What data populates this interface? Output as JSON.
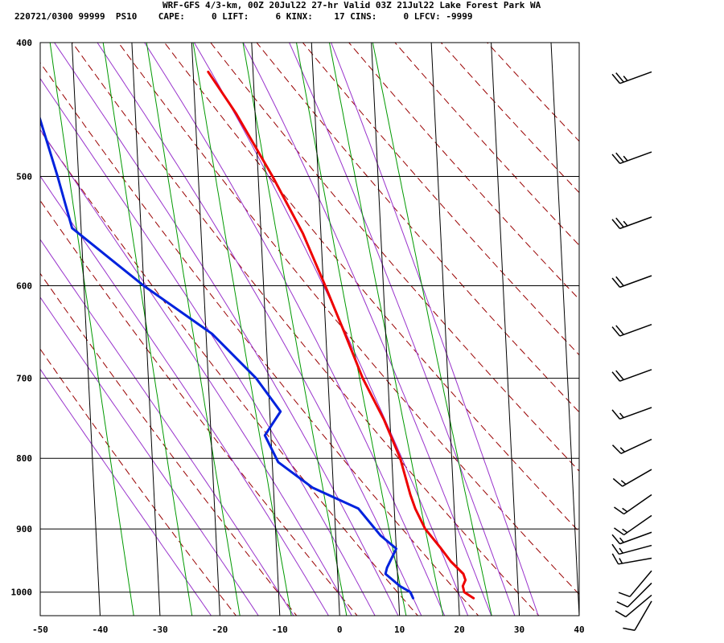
{
  "header": {
    "title": "WRF-GFS 4/3-km, 00Z 20Jul22 27-hr Valid 03Z 21Jul22 Lake Forest Park WA",
    "subtitle": "220721/0300 99999  PS10    CAPE:     0 LIFT:     6 KINX:    17 CINS:     0 LFCV: -9999"
  },
  "chart_data": {
    "type": "line",
    "chart_kind": "skew-T log-p sounding",
    "title": "WRF-GFS 4/3-km, 00Z 20Jul22 27-hr Valid 03Z 21Jul22 Lake Forest Park WA",
    "xlabel": "",
    "ylabel": "",
    "x_unit": "temperature (°C, skewed)",
    "y_unit": "pressure (hPa, log scale)",
    "xlim": [
      -50,
      40
    ],
    "ylim": [
      1040,
      400
    ],
    "y_scale": "log",
    "grid": true,
    "x_ticks": [
      -50,
      -40,
      -30,
      -20,
      -10,
      0,
      10,
      20,
      30,
      40
    ],
    "y_ticks": [
      400,
      500,
      600,
      700,
      800,
      900,
      1000
    ],
    "colors": {
      "temperature": "#ee0000",
      "dewpoint": "#0022dd",
      "dry_adiabats": "#990000",
      "moist_adiabats": "#9933cc",
      "mixing_ratio": "#009900",
      "grid": "#000000"
    },
    "series": [
      {
        "key": "temperature",
        "color": "#ee0000",
        "points": [
          {
            "p": 1010,
            "t": 22.5
          },
          {
            "p": 1000,
            "t": 21.0
          },
          {
            "p": 990,
            "t": 20.8
          },
          {
            "p": 980,
            "t": 21.3
          },
          {
            "p": 970,
            "t": 21.0
          },
          {
            "p": 950,
            "t": 19.0
          },
          {
            "p": 930,
            "t": 17.5
          },
          {
            "p": 900,
            "t": 15.0
          },
          {
            "p": 870,
            "t": 13.5
          },
          {
            "p": 850,
            "t": 12.8
          },
          {
            "p": 800,
            "t": 11.4
          },
          {
            "p": 750,
            "t": 9.0
          },
          {
            "p": 700,
            "t": 5.8
          },
          {
            "p": 650,
            "t": 3.2
          },
          {
            "p": 600,
            "t": 0.3
          },
          {
            "p": 550,
            "t": -3.0
          },
          {
            "p": 500,
            "t": -7.6
          },
          {
            "p": 450,
            "t": -13.2
          },
          {
            "p": 420,
            "t": -17.5
          }
        ]
      },
      {
        "key": "dewpoint",
        "color": "#0022dd",
        "points": [
          {
            "p": 1010,
            "t": 12.4
          },
          {
            "p": 1000,
            "t": 12.0
          },
          {
            "p": 990,
            "t": 10.3
          },
          {
            "p": 970,
            "t": 8.0
          },
          {
            "p": 960,
            "t": 8.3
          },
          {
            "p": 930,
            "t": 10.0
          },
          {
            "p": 910,
            "t": 7.5
          },
          {
            "p": 870,
            "t": 4.0
          },
          {
            "p": 840,
            "t": -3.5
          },
          {
            "p": 805,
            "t": -9.0
          },
          {
            "p": 770,
            "t": -11.0
          },
          {
            "p": 740,
            "t": -8.2
          },
          {
            "p": 700,
            "t": -12.0
          },
          {
            "p": 650,
            "t": -19.0
          },
          {
            "p": 600,
            "t": -30.0
          },
          {
            "p": 545,
            "t": -41.5
          },
          {
            "p": 500,
            "t": -43.5
          },
          {
            "p": 420,
            "t": -48.0
          }
        ]
      }
    ],
    "wind_barbs": [
      {
        "p": 420,
        "dir": 250,
        "speed": 25
      },
      {
        "p": 480,
        "dir": 250,
        "speed": 25
      },
      {
        "p": 535,
        "dir": 250,
        "speed": 25
      },
      {
        "p": 590,
        "dir": 250,
        "speed": 20
      },
      {
        "p": 640,
        "dir": 250,
        "speed": 20
      },
      {
        "p": 690,
        "dir": 250,
        "speed": 20
      },
      {
        "p": 735,
        "dir": 250,
        "speed": 15
      },
      {
        "p": 775,
        "dir": 245,
        "speed": 15
      },
      {
        "p": 815,
        "dir": 240,
        "speed": 15
      },
      {
        "p": 850,
        "dir": 235,
        "speed": 15
      },
      {
        "p": 880,
        "dir": 235,
        "speed": 15
      },
      {
        "p": 905,
        "dir": 250,
        "speed": 15
      },
      {
        "p": 925,
        "dir": 255,
        "speed": 15
      },
      {
        "p": 945,
        "dir": 260,
        "speed": 15
      },
      {
        "p": 965,
        "dir": 220,
        "speed": 10
      },
      {
        "p": 985,
        "dir": 225,
        "speed": 10
      },
      {
        "p": 1005,
        "dir": 230,
        "speed": 10
      },
      {
        "p": 1015,
        "dir": 210,
        "speed": 10
      }
    ],
    "background_lines": {
      "dry_adiabats_theta_K": [
        253,
        263,
        273,
        283,
        293,
        303,
        313,
        323,
        333,
        343,
        353,
        363,
        373,
        383,
        393
      ],
      "moist_adiabats_thetaw_C": [
        -24,
        -16,
        -10,
        -4,
        0,
        4,
        8,
        12,
        16,
        20,
        24,
        28,
        32
      ],
      "mixing_ratio_gkg": [
        0.2,
        0.5,
        1,
        2,
        4,
        8,
        12,
        20
      ]
    }
  }
}
